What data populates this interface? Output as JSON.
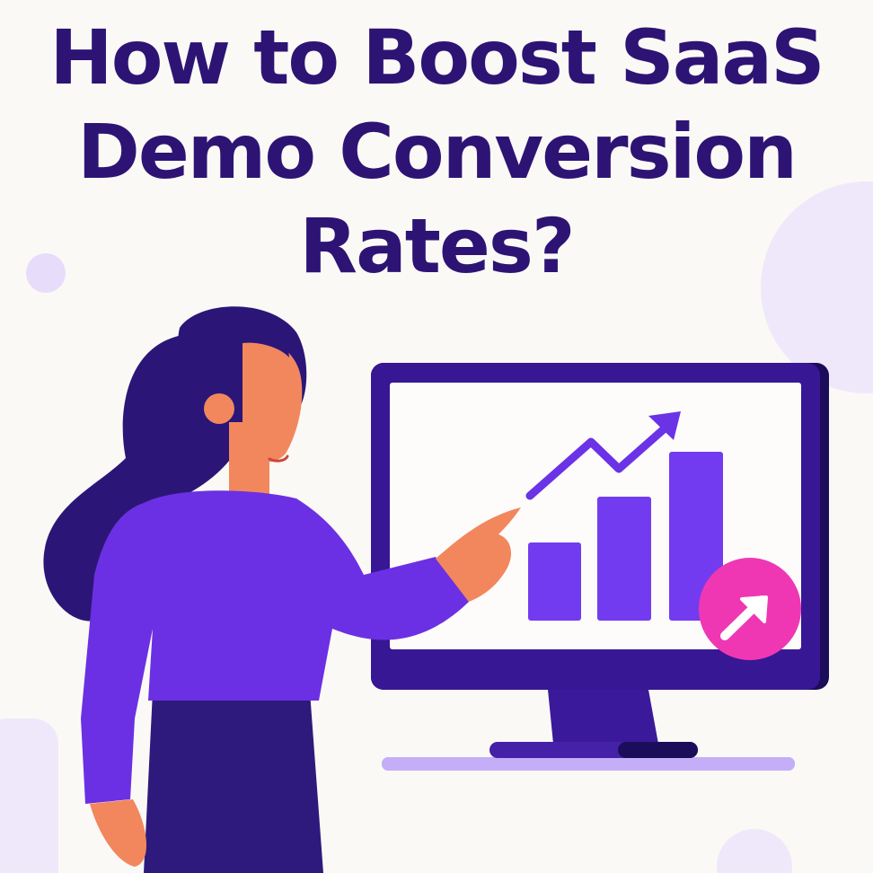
{
  "title": {
    "lines": [
      "How to Boost SaaS",
      "Demo Conversion",
      "Rates?"
    ]
  },
  "colors": {
    "background": "#fbf9f6",
    "title": "#2d1474",
    "monitor_frame": "#371794",
    "bars": "#733bef",
    "badge": "#ef37b4",
    "shirt": "#6b30e3",
    "hair": "#2b1677",
    "skin": "#f2875e"
  },
  "illustration": {
    "screen_chart_bars_relative": [
      0.47,
      0.73,
      1.0
    ],
    "trend": "up",
    "badge_icon": "arrow-up-right-icon"
  }
}
